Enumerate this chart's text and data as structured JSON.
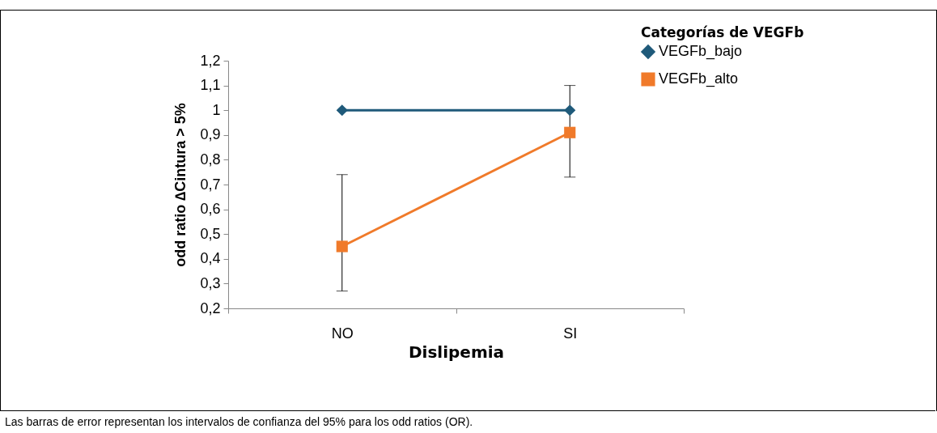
{
  "chart_data": {
    "type": "line",
    "xlabel": "Dislipemia",
    "ylabel": "odd ratio ∆Cintura > 5%",
    "legend_title": "Categorías de VEGFb",
    "legend": "top right",
    "grid": false,
    "categories": [
      "NO",
      "SI"
    ],
    "series": [
      {
        "name": "VEGFb_bajo",
        "color": "#1f5a7a",
        "marker": "diamond",
        "values": [
          1,
          1
        ]
      },
      {
        "name": "VEGFb_alto",
        "color": "#f07a2a",
        "marker": "square",
        "values": [
          0.45,
          0.91
        ],
        "errors": [
          [
            0.27,
            0.74
          ],
          [
            0.73,
            1.1
          ]
        ]
      }
    ],
    "ylim": [
      0.2,
      1.2
    ],
    "yticks": [
      {
        "value": 0.2,
        "label": "0,2"
      },
      {
        "value": 0.3,
        "label": "0,3"
      },
      {
        "value": 0.4,
        "label": "0,4"
      },
      {
        "value": 0.5,
        "label": "0,5"
      },
      {
        "value": 0.6,
        "label": "0,6"
      },
      {
        "value": 0.7,
        "label": "0,7"
      },
      {
        "value": 0.8,
        "label": "0,8"
      },
      {
        "value": 0.9,
        "label": "0,9"
      },
      {
        "value": 1,
        "label": "1"
      },
      {
        "value": 1.1,
        "label": "1,1"
      },
      {
        "value": 1.2,
        "label": "1,2"
      }
    ],
    "annotations": [
      "Las barras de error representan los intervalos de confianza del 95% para los odd ratios (OR)."
    ]
  }
}
